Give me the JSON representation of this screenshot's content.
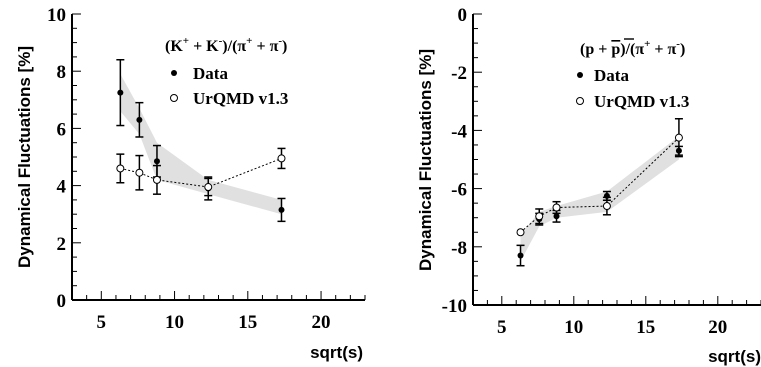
{
  "chart_data": [
    {
      "type": "scatter",
      "title": "",
      "xlabel": "sqrt(s)",
      "ylabel": "Dynamical Fluctuations [%]",
      "xlim": [
        3,
        23
      ],
      "ylim": [
        0,
        10
      ],
      "xticks": [
        5,
        10,
        15,
        20
      ],
      "yticks": [
        0,
        2,
        4,
        6,
        8,
        10
      ],
      "ratio_label": {
        "open": "(K",
        "sup1": "+",
        "mid1": " + K",
        "sup2": "-",
        "mid2": ")/(π",
        "sup3": "+",
        "mid3": " + π",
        "sup4": "-",
        "close": ")"
      },
      "legend_position": "top-right",
      "band": {
        "x": [
          6.3,
          7.6,
          8.8,
          12.3,
          17.3
        ],
        "upper": [
          7.9,
          6.7,
          5.5,
          4.2,
          3.5
        ],
        "lower": [
          6.6,
          5.8,
          4.2,
          3.7,
          3.0
        ]
      },
      "series": [
        {
          "name": "Data",
          "marker": "filled",
          "connected": false,
          "x": [
            6.3,
            7.6,
            8.8,
            12.3,
            17.3
          ],
          "y": [
            7.25,
            6.3,
            4.85,
            3.9,
            3.15
          ],
          "err": [
            1.15,
            0.6,
            0.55,
            0.4,
            0.4
          ]
        },
        {
          "name": "UrQMD v1.3",
          "marker": "open",
          "connected": true,
          "x": [
            6.3,
            7.6,
            8.8,
            12.3,
            17.3
          ],
          "y": [
            4.6,
            4.45,
            4.2,
            3.95,
            4.95
          ],
          "err": [
            0.5,
            0.6,
            0.5,
            0.3,
            0.35
          ]
        }
      ]
    },
    {
      "type": "scatter",
      "title": "",
      "xlabel": "sqrt(s)",
      "ylabel": "Dynamical Fluctuations [%]",
      "xlim": [
        3,
        23
      ],
      "ylim": [
        -10,
        0
      ],
      "xticks": [
        5,
        10,
        15,
        20
      ],
      "yticks": [
        -10,
        -8,
        -6,
        -4,
        -2,
        0
      ],
      "ratio_label": {
        "open": "(p + ",
        "pbar": "p",
        "mid": ")/(π",
        "sup1": "+",
        "mid2": " + π",
        "sup2": "-",
        "close": ")"
      },
      "legend_position": "top-right",
      "band": {
        "x": [
          6.3,
          7.6,
          8.8,
          12.3,
          17.3
        ],
        "upper": [
          -7.6,
          -6.8,
          -6.6,
          -6.1,
          -4.2
        ],
        "lower": [
          -8.5,
          -7.3,
          -7.0,
          -6.8,
          -5.0
        ]
      },
      "series": [
        {
          "name": "Data",
          "marker": "filled",
          "connected": false,
          "x": [
            6.3,
            7.6,
            8.8,
            12.3,
            17.3
          ],
          "y": [
            -8.3,
            -7.05,
            -6.95,
            -6.25,
            -4.7
          ],
          "err": [
            0.35,
            0.2,
            0.2,
            0.15,
            0.15
          ]
        },
        {
          "name": "UrQMD v1.3",
          "marker": "open",
          "connected": true,
          "x": [
            6.3,
            7.6,
            8.8,
            12.3,
            17.3
          ],
          "y": [
            -7.5,
            -6.95,
            -6.65,
            -6.6,
            -4.25
          ],
          "err": [
            0.0,
            0.25,
            0.2,
            0.3,
            0.65
          ]
        }
      ]
    }
  ]
}
